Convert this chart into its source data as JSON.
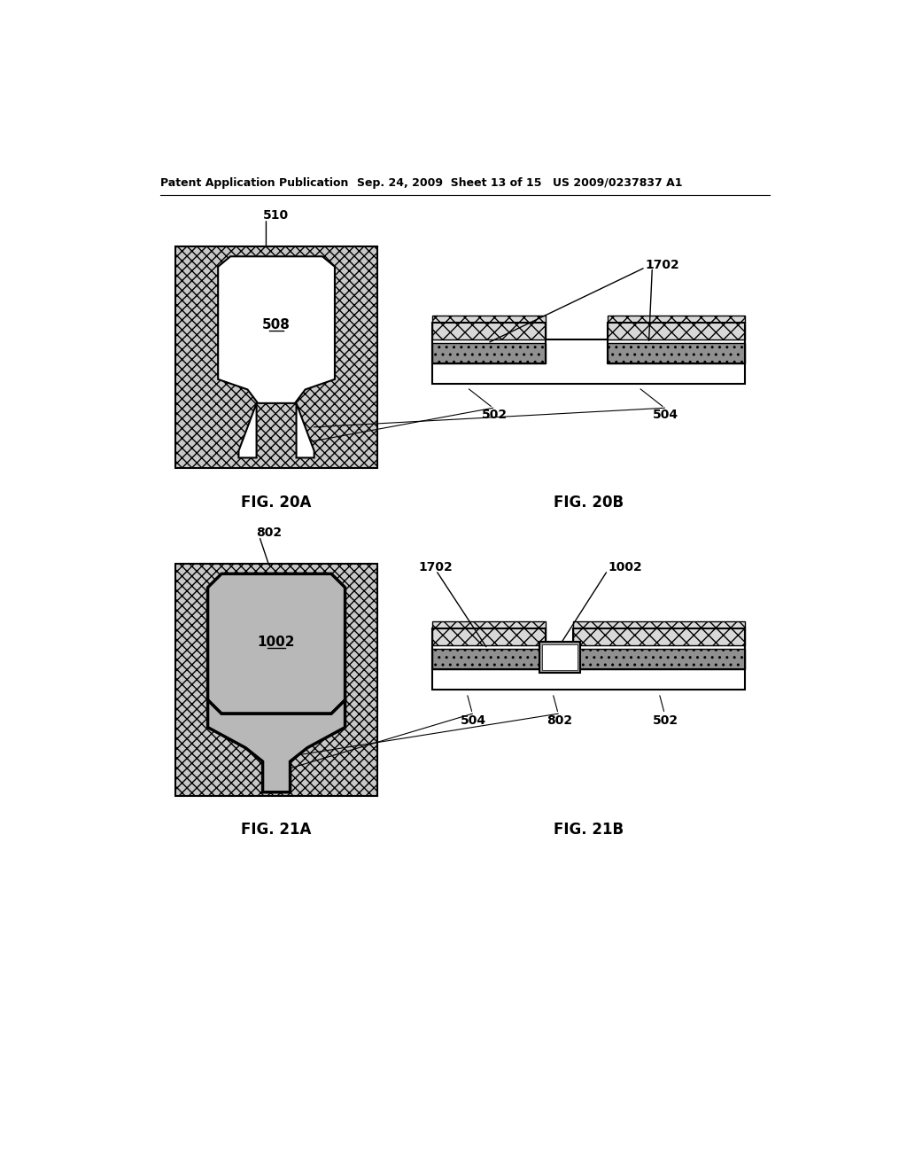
{
  "bg_color": "#ffffff",
  "header_left": "Patent Application Publication",
  "header_mid": "Sep. 24, 2009  Sheet 13 of 15",
  "header_right": "US 2009/0237837 A1",
  "fig20a_label": "FIG. 20A",
  "fig20b_label": "FIG. 20B",
  "fig21a_label": "FIG. 21A",
  "fig21b_label": "FIG. 21B",
  "label_510": "510",
  "label_508": "508",
  "label_502_20b": "502",
  "label_504_20b": "504",
  "label_1702_20b": "1702",
  "label_802_21a": "802",
  "label_1002_21a": "1002",
  "label_1702_21b": "1702",
  "label_1002_21b": "1002",
  "label_504_21b": "504",
  "label_802_21b": "802",
  "label_502_21b": "502",
  "label_502_20a": "502",
  "label_504_20a": "504"
}
